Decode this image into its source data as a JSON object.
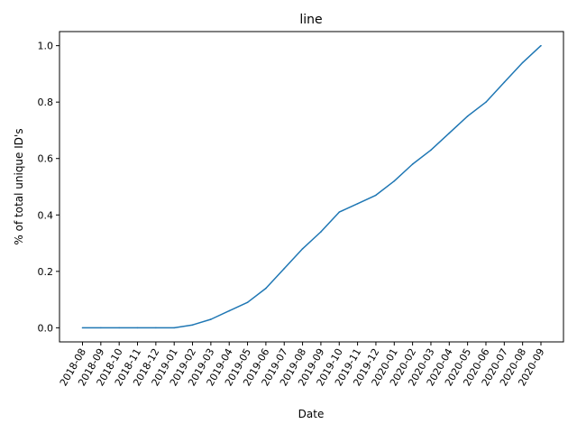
{
  "chart_data": {
    "type": "line",
    "title": "line",
    "xlabel": "Date",
    "ylabel": "% of total unique ID's",
    "categories": [
      "2018-08",
      "2018-09",
      "2018-10",
      "2018-11",
      "2018-12",
      "2019-01",
      "2019-02",
      "2019-03",
      "2019-04",
      "2019-05",
      "2019-06",
      "2019-07",
      "2019-08",
      "2019-09",
      "2019-10",
      "2019-11",
      "2019-12",
      "2020-01",
      "2020-02",
      "2020-03",
      "2020-04",
      "2020-05",
      "2020-06",
      "2020-07",
      "2020-08",
      "2020-09"
    ],
    "series": [
      {
        "values": [
          0.0,
          0.0,
          0.0,
          0.0,
          0.0,
          0.0,
          0.01,
          0.03,
          0.06,
          0.09,
          0.14,
          0.21,
          0.28,
          0.34,
          0.41,
          0.44,
          0.47,
          0.52,
          0.58,
          0.63,
          0.69,
          0.75,
          0.8,
          0.87,
          0.94,
          1.0
        ]
      }
    ],
    "ylim": [
      -0.05,
      1.05
    ],
    "yticks": [
      "0.0",
      "0.2",
      "0.4",
      "0.6",
      "0.8",
      "1.0"
    ],
    "line_color": "#1f77b4",
    "grid": false,
    "legend": "none"
  }
}
